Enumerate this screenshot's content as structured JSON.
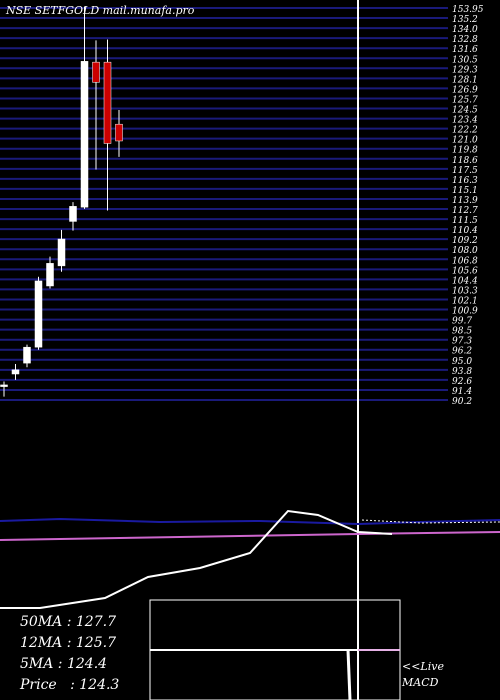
{
  "title": "NSE SETFGOLD mail.munafa.pro",
  "price_labels": [
    "153.95",
    "135.2",
    "134.0",
    "132.8",
    "131.6",
    "130.5",
    "129.3",
    "128.1",
    "126.9",
    "125.7",
    "124.5",
    "123.4",
    "122.2",
    "121.0",
    "119.8",
    "118.6",
    "117.5",
    "116.3",
    "115.1",
    "113.9",
    "112.7",
    "111.5",
    "110.4",
    "109.2",
    "108.0",
    "106.8",
    "105.6",
    "104.4",
    "103.3",
    "102.1",
    "100.9",
    "99.7",
    "98.5",
    "97.3",
    "96.2",
    "95.0",
    "93.8",
    "92.6",
    "91.4",
    "90.2"
  ],
  "ma_labels": [
    {
      "label": "50MA",
      "value": "127.7"
    },
    {
      "label": "12MA",
      "value": "125.7"
    },
    {
      "label": "5MA",
      "value": "124.4"
    },
    {
      "label": "Price",
      "value": "124.3"
    }
  ],
  "live_label": "<<Live",
  "macd_label": "MACD",
  "colors": {
    "background": "#000000",
    "grid": "#1a1a7a",
    "up": "#ffffff",
    "down": "#cc0000",
    "ma_blue": "#1a1aa0",
    "ma_pink": "#cc66cc",
    "macd": "#ffffff"
  },
  "chart_data": {
    "type": "candlestick",
    "ylim": [
      89.0,
      136.0
    ],
    "candles": [
      {
        "o": 90.6,
        "h": 91.2,
        "l": 89.4,
        "c": 90.8
      },
      {
        "o": 92.1,
        "h": 93.3,
        "l": 91.4,
        "c": 92.6
      },
      {
        "o": 93.4,
        "h": 95.6,
        "l": 92.9,
        "c": 95.3
      },
      {
        "o": 95.3,
        "h": 103.7,
        "l": 95.0,
        "c": 103.2
      },
      {
        "o": 102.6,
        "h": 106.1,
        "l": 102.3,
        "c": 105.3
      },
      {
        "o": 105.0,
        "h": 109.3,
        "l": 104.3,
        "c": 108.2
      },
      {
        "o": 110.3,
        "h": 112.6,
        "l": 109.2,
        "c": 112.1
      },
      {
        "o": 112.0,
        "h": 135.9,
        "l": 111.8,
        "c": 129.4
      },
      {
        "o": 129.3,
        "h": 131.9,
        "l": 116.5,
        "c": 126.9
      },
      {
        "o": 129.3,
        "h": 132.0,
        "l": 111.6,
        "c": 119.6
      },
      {
        "o": 121.9,
        "h": 123.6,
        "l": 118.0,
        "c": 119.9
      }
    ],
    "ma_series": [
      {
        "name": "50MA",
        "value": 127.7
      },
      {
        "name": "12MA",
        "value": 125.7
      },
      {
        "name": "5MA",
        "value": 124.4
      }
    ],
    "price": 124.3
  }
}
